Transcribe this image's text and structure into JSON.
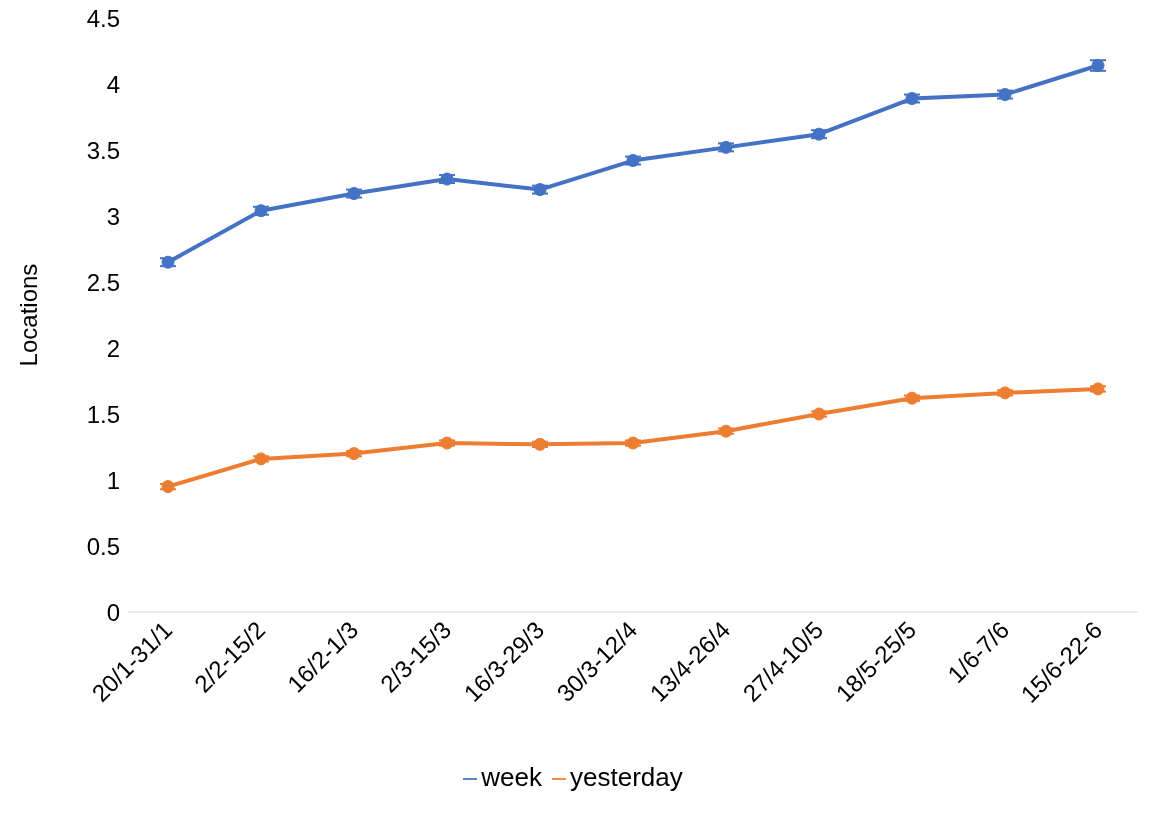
{
  "chart_data": {
    "type": "line",
    "ylabel": "Locations",
    "categories": [
      "20/1-31/1",
      "2/2-15/2",
      "16/2-1/3",
      "2/3-15/3",
      "16/3-29/3",
      "30/3-12/4",
      "13/4-26/4",
      "27/4-10/5",
      "18/5-25/5",
      "1/6-7/6",
      "15/6-22-6"
    ],
    "series": [
      {
        "name": "week",
        "color": "#4472c4",
        "values": [
          2.65,
          3.04,
          3.17,
          3.28,
          3.2,
          3.42,
          3.52,
          3.62,
          3.89,
          3.92,
          4.14
        ],
        "errors": [
          0.03,
          0.03,
          0.03,
          0.03,
          0.03,
          0.03,
          0.03,
          0.03,
          0.03,
          0.03,
          0.04
        ]
      },
      {
        "name": "yesterday",
        "color": "#ed7d31",
        "values": [
          0.95,
          1.16,
          1.2,
          1.28,
          1.27,
          1.28,
          1.37,
          1.5,
          1.62,
          1.66,
          1.69
        ],
        "errors": [
          0.02,
          0.02,
          0.02,
          0.02,
          0.02,
          0.02,
          0.02,
          0.02,
          0.02,
          0.02,
          0.02
        ]
      }
    ],
    "ylim": [
      0,
      4.5
    ],
    "yticks": [
      0,
      0.5,
      1,
      1.5,
      2,
      2.5,
      3,
      3.5,
      4,
      4.5
    ],
    "legend": "bottom",
    "marker": "circle"
  }
}
